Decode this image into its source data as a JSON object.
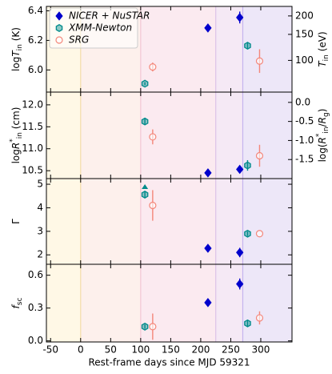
{
  "chart_data": [
    {
      "type": "scatter",
      "xlim": [
        -57,
        352
      ],
      "xticks": [
        -50,
        0,
        50,
        100,
        150,
        200,
        250,
        300
      ],
      "ylim": [
        5.85,
        6.43
      ],
      "yticks": [
        {
          "value": 6,
          "label": "6.0"
        },
        6.2,
        6.4
      ],
      "y2lim": [
        61,
        232
      ],
      "y2log": true,
      "y2ticks": [
        100,
        150,
        200
      ],
      "ylabel": [
        "log",
        "T",
        "in",
        " (K)"
      ],
      "ylabel_format": [
        "n",
        "i",
        "s",
        "n"
      ],
      "y2label": [
        "T",
        "in",
        " (eV)"
      ],
      "y2label_format": [
        "i",
        "s",
        "n"
      ],
      "legend": "upper left",
      "regions": [
        {
          "x": [
            -57,
            0
          ],
          "color": "#fff8e6"
        },
        {
          "x": [
            0,
            100
          ],
          "color": "#fdf0ec"
        },
        {
          "x": [
            100,
            225
          ],
          "color": "#fbeaf0"
        },
        {
          "x": [
            225,
            270
          ],
          "color": "#f5e9f5"
        },
        {
          "x": [
            270,
            352
          ],
          "color": "#ede7f8"
        }
      ],
      "boundaries": [
        0,
        100,
        225,
        270
      ],
      "boundary_colors": [
        "#f3dca8",
        "#f2c6d4",
        "#dcc3e8",
        "#c4b4ee"
      ],
      "series": [
        {
          "name": "NICER + NuSTAR",
          "marker": "diamond",
          "color": "#0000cc",
          "x": [
            212,
            265
          ],
          "values": [
            6.284,
            6.355
          ],
          "errors": [
            0.01,
            0.04
          ]
        },
        {
          "name": "XMM-Newton",
          "marker": "hexagon",
          "color": "#008b8b",
          "x": [
            107,
            278
          ],
          "values": [
            5.907,
            6.164
          ],
          "errors": [
            0.01,
            0.02
          ]
        },
        {
          "name": "SRG",
          "marker": "circle",
          "color": "#f4877a",
          "x": [
            120,
            298
          ],
          "values": [
            6.02,
            6.06
          ],
          "errors": [
            0.03,
            0.08
          ]
        }
      ]
    },
    {
      "type": "scatter",
      "xlim": [
        -57,
        352
      ],
      "xticks": [
        -50,
        0,
        50,
        100,
        150,
        200,
        250,
        300
      ],
      "ylim": [
        10.32,
        12.29
      ],
      "yticks": [
        10.5,
        {
          "value": 11,
          "label": "11.0"
        },
        11.5,
        {
          "value": 12,
          "label": "12.0"
        }
      ],
      "y2lim": [
        -2.0,
        0.27
      ],
      "y2ticks": [
        -1.5,
        {
          "value": -1,
          "label": "-1.0"
        },
        -0.5,
        {
          "value": 0,
          "label": "0.0"
        }
      ],
      "ylabel": [
        "log",
        "R",
        "*",
        "in",
        " (cm)"
      ],
      "ylabel_format": [
        "n",
        "i",
        "p",
        "s",
        "n"
      ],
      "y2label": [
        "log(",
        "R",
        "*",
        "in",
        "/",
        "R",
        "g",
        ")"
      ],
      "y2label_format": [
        "n",
        "i",
        "p",
        "s",
        "n",
        "i",
        "s",
        "n"
      ],
      "regions": [
        {
          "x": [
            -57,
            0
          ],
          "color": "#fff8e6"
        },
        {
          "x": [
            0,
            100
          ],
          "color": "#fdf0ec"
        },
        {
          "x": [
            100,
            225
          ],
          "color": "#fbeaf0"
        },
        {
          "x": [
            225,
            270
          ],
          "color": "#f5e9f5"
        },
        {
          "x": [
            270,
            352
          ],
          "color": "#ede7f8"
        }
      ],
      "boundaries": [
        0,
        100,
        225,
        270
      ],
      "boundary_colors": [
        "#f3dca8",
        "#f2c6d4",
        "#dcc3e8",
        "#c4b4ee"
      ],
      "series": [
        {
          "name": "NICER + NuSTAR",
          "marker": "diamond",
          "color": "#0000cc",
          "x": [
            212,
            265
          ],
          "values": [
            10.45,
            10.53
          ],
          "errors": [
            0.03,
            0.03
          ]
        },
        {
          "name": "XMM-Newton",
          "marker": "hexagon",
          "color": "#008b8b",
          "x": [
            107,
            278
          ],
          "values": [
            11.62,
            10.62
          ],
          "errors": [
            0.07,
            0.12
          ]
        },
        {
          "name": "SRG",
          "marker": "circle",
          "color": "#f4877a",
          "x": [
            120,
            298
          ],
          "values": [
            11.27,
            10.84
          ],
          "errors": [
            0.17,
            0.25
          ]
        }
      ]
    },
    {
      "type": "scatter",
      "xlim": [
        -57,
        352
      ],
      "xticks": [
        -50,
        0,
        50,
        100,
        150,
        200,
        250,
        300
      ],
      "ylim": [
        1.6,
        5.24
      ],
      "yticks": [
        2,
        3,
        4,
        5
      ],
      "ylabel": [
        "Γ"
      ],
      "ylabel_format": [
        "n"
      ],
      "regions": [
        {
          "x": [
            -57,
            0
          ],
          "color": "#fff8e6"
        },
        {
          "x": [
            0,
            100
          ],
          "color": "#fdf0ec"
        },
        {
          "x": [
            100,
            225
          ],
          "color": "#fbeaf0"
        },
        {
          "x": [
            225,
            270
          ],
          "color": "#f5e9f5"
        },
        {
          "x": [
            270,
            352
          ],
          "color": "#ede7f8"
        }
      ],
      "boundaries": [
        0,
        100,
        225,
        270
      ],
      "boundary_colors": [
        "#f3dca8",
        "#f2c6d4",
        "#dcc3e8",
        "#c4b4ee"
      ],
      "series": [
        {
          "name": "NICER + NuSTAR",
          "marker": "diamond",
          "color": "#0000cc",
          "x": [
            212,
            265
          ],
          "values": [
            2.28,
            2.1
          ],
          "errors": [
            0.08,
            0.2
          ]
        },
        {
          "name": "XMM-Newton",
          "marker": "hexagon",
          "color": "#008b8b",
          "x": [
            107,
            278
          ],
          "values": [
            4.56,
            2.9
          ],
          "errors": [
            0.15,
            0.1
          ],
          "lower_limit": [
            true,
            false
          ]
        },
        {
          "name": "SRG",
          "marker": "circle",
          "color": "#f4877a",
          "x": [
            120,
            298
          ],
          "values": [
            4.1,
            2.9
          ],
          "errors": [
            0.65,
            null
          ]
        }
      ]
    },
    {
      "type": "scatter",
      "xlim": [
        -57,
        352
      ],
      "xticks": [
        -50,
        0,
        50,
        100,
        150,
        200,
        250,
        300
      ],
      "ylim": [
        -0.01,
        0.7
      ],
      "yticks": [
        {
          "value": 0,
          "label": "0.0"
        },
        0.3,
        0.6
      ],
      "ylabel": [
        "f",
        "sc"
      ],
      "ylabel_format": [
        "i",
        "s"
      ],
      "xlabel": "Rest-frame days since MJD 59321",
      "regions": [
        {
          "x": [
            -57,
            0
          ],
          "color": "#fff8e6"
        },
        {
          "x": [
            0,
            100
          ],
          "color": "#fdf0ec"
        },
        {
          "x": [
            100,
            225
          ],
          "color": "#fbeaf0"
        },
        {
          "x": [
            225,
            270
          ],
          "color": "#f5e9f5"
        },
        {
          "x": [
            270,
            352
          ],
          "color": "#ede7f8"
        }
      ],
      "boundaries": [
        0,
        100,
        225,
        270
      ],
      "boundary_colors": [
        "#f3dca8",
        "#f2c6d4",
        "#dcc3e8",
        "#c4b4ee"
      ],
      "series": [
        {
          "name": "NICER + NuSTAR",
          "marker": "diamond",
          "color": "#0000cc",
          "x": [
            212,
            265
          ],
          "values": [
            0.35,
            0.52
          ],
          "errors": [
            0.02,
            0.05
          ]
        },
        {
          "name": "XMM-Newton",
          "marker": "hexagon",
          "color": "#008b8b",
          "x": [
            107,
            278
          ],
          "values": [
            0.13,
            0.16
          ],
          "errors": [
            0.02,
            0.03
          ]
        },
        {
          "name": "SRG",
          "marker": "circle",
          "color": "#f4877a",
          "x": [
            120,
            298
          ],
          "values": [
            0.13,
            0.21
          ],
          "errors": [
            0.12,
            0.06
          ]
        }
      ]
    }
  ]
}
